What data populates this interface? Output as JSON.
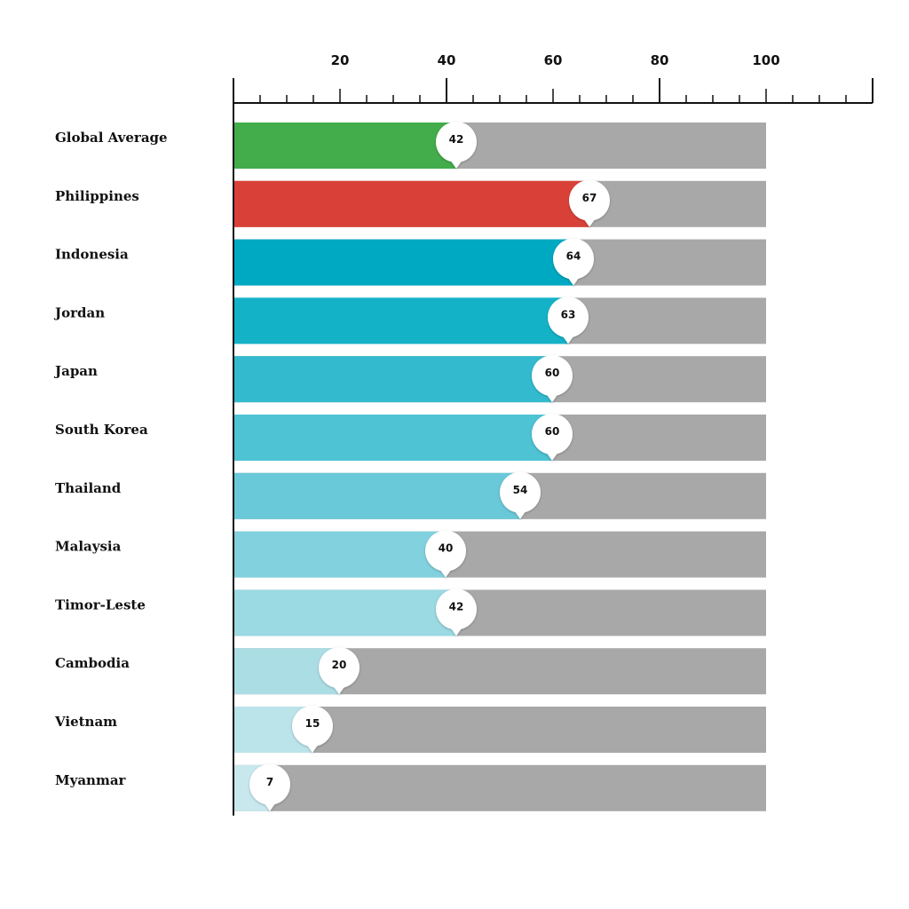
{
  "chart_data": {
    "type": "bar",
    "orientation": "horizontal",
    "categories": [
      "Global Average",
      "Philippines",
      "Indonesia",
      "Jordan",
      "Japan",
      "South Korea",
      "Thailand",
      "Malaysia",
      "Timor-Leste",
      "Cambodia",
      "Vietnam",
      "Myanmar"
    ],
    "values": [
      42,
      67,
      64,
      63,
      60,
      60,
      54,
      40,
      42,
      20,
      15,
      7
    ],
    "data_labels": [
      "42",
      "67",
      "64",
      "63",
      "60",
      "60",
      "54",
      "40",
      "42",
      "20",
      "15",
      "7"
    ],
    "bar_colors": [
      "#43ac4b",
      "#d94138",
      "#00a9c2",
      "#14b2c7",
      "#33bace",
      "#4ec3d4",
      "#69c9d8",
      "#82d1de",
      "#9bd9e3",
      "#abdde5",
      "#bbe3ea",
      "#c8e8ee"
    ],
    "track_color": "#a9a8a9",
    "marker_color": "#ffffff",
    "max_value": 100,
    "xlim": [
      0,
      120
    ],
    "major_ticks": [
      20,
      40,
      60,
      80,
      100
    ],
    "tick_labels": [
      "20",
      "40",
      "60",
      "80",
      "100"
    ],
    "minor_tick_step": 5,
    "axis_position": "top",
    "title": "",
    "xlabel": "",
    "ylabel": "",
    "grid": false,
    "legend": "none"
  }
}
